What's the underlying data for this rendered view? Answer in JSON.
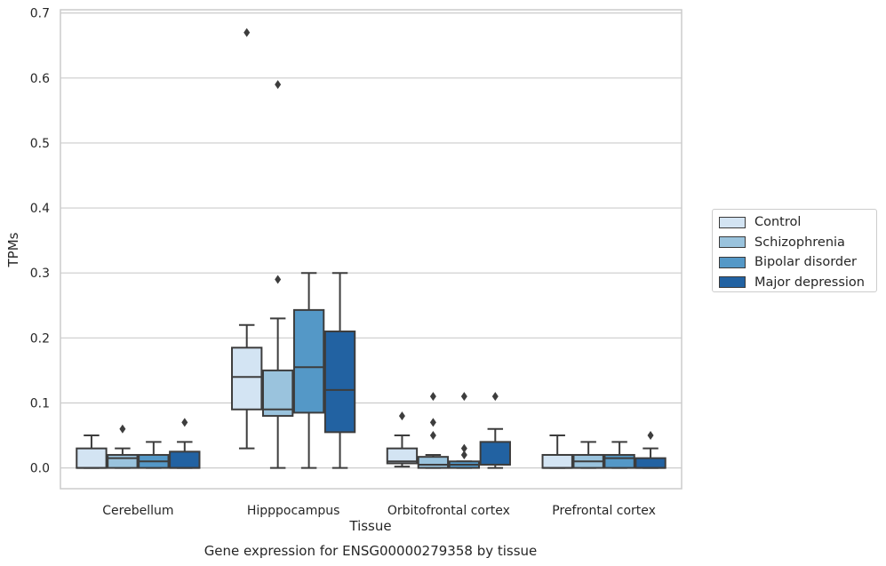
{
  "chart_data": {
    "type": "box",
    "title": "",
    "caption": "Gene expression for ENSG00000279358 by tissue",
    "xlabel": "Tissue",
    "ylabel": "TPMs",
    "ylim": [
      -0.032,
      0.705
    ],
    "yticks": [
      "0.0",
      "0.1",
      "0.2",
      "0.3",
      "0.4",
      "0.5",
      "0.6",
      "0.7"
    ],
    "grid": "horizontal",
    "legend_position": "right",
    "categories": [
      "Cerebellum",
      "Hipppocampus",
      "Orbitofrontal cortex",
      "Prefrontal cortex"
    ],
    "series": [
      {
        "name": "Control",
        "color": "#d3e4f3",
        "boxes": [
          {
            "whislo": 0.0,
            "q1": 0.0,
            "med": 0.0,
            "q3": 0.03,
            "whishi": 0.05,
            "fliers": []
          },
          {
            "whislo": 0.03,
            "q1": 0.09,
            "med": 0.14,
            "q3": 0.185,
            "whishi": 0.22,
            "fliers": [
              0.67
            ]
          },
          {
            "whislo": 0.002,
            "q1": 0.007,
            "med": 0.01,
            "q3": 0.03,
            "whishi": 0.05,
            "fliers": [
              0.08
            ]
          },
          {
            "whislo": 0.0,
            "q1": 0.0,
            "med": 0.0,
            "q3": 0.02,
            "whishi": 0.05,
            "fliers": []
          }
        ]
      },
      {
        "name": "Schizophrenia",
        "color": "#9ac3dd",
        "boxes": [
          {
            "whislo": 0.0,
            "q1": 0.0,
            "med": 0.015,
            "q3": 0.02,
            "whishi": 0.03,
            "fliers": [
              0.06
            ]
          },
          {
            "whislo": 0.0,
            "q1": 0.08,
            "med": 0.09,
            "q3": 0.15,
            "whishi": 0.23,
            "fliers": [
              0.29,
              0.59
            ]
          },
          {
            "whislo": 0.0,
            "q1": 0.0,
            "med": 0.005,
            "q3": 0.017,
            "whishi": 0.02,
            "fliers": [
              0.05,
              0.07,
              0.11
            ]
          },
          {
            "whislo": 0.0,
            "q1": 0.0,
            "med": 0.01,
            "q3": 0.02,
            "whishi": 0.04,
            "fliers": []
          }
        ]
      },
      {
        "name": "Bipolar disorder",
        "color": "#5498c7",
        "boxes": [
          {
            "whislo": 0.0,
            "q1": 0.0,
            "med": 0.01,
            "q3": 0.02,
            "whishi": 0.04,
            "fliers": []
          },
          {
            "whislo": 0.0,
            "q1": 0.085,
            "med": 0.155,
            "q3": 0.243,
            "whishi": 0.3,
            "fliers": []
          },
          {
            "whislo": 0.0,
            "q1": 0.0,
            "med": 0.005,
            "q3": 0.01,
            "whishi": 0.01,
            "fliers": [
              0.02,
              0.03,
              0.11
            ]
          },
          {
            "whislo": 0.0,
            "q1": 0.0,
            "med": 0.015,
            "q3": 0.02,
            "whishi": 0.04,
            "fliers": []
          }
        ]
      },
      {
        "name": "Major depression",
        "color": "#2262a2",
        "boxes": [
          {
            "whislo": 0.0,
            "q1": 0.0,
            "med": 0.0,
            "q3": 0.025,
            "whishi": 0.04,
            "fliers": [
              0.07
            ]
          },
          {
            "whislo": 0.0,
            "q1": 0.055,
            "med": 0.12,
            "q3": 0.21,
            "whishi": 0.3,
            "fliers": []
          },
          {
            "whislo": 0.0,
            "q1": 0.005,
            "med": 0.005,
            "q3": 0.04,
            "whishi": 0.06,
            "fliers": [
              0.11
            ]
          },
          {
            "whislo": 0.0,
            "q1": 0.0,
            "med": 0.0,
            "q3": 0.015,
            "whishi": 0.03,
            "fliers": [
              0.05
            ]
          }
        ]
      }
    ]
  }
}
